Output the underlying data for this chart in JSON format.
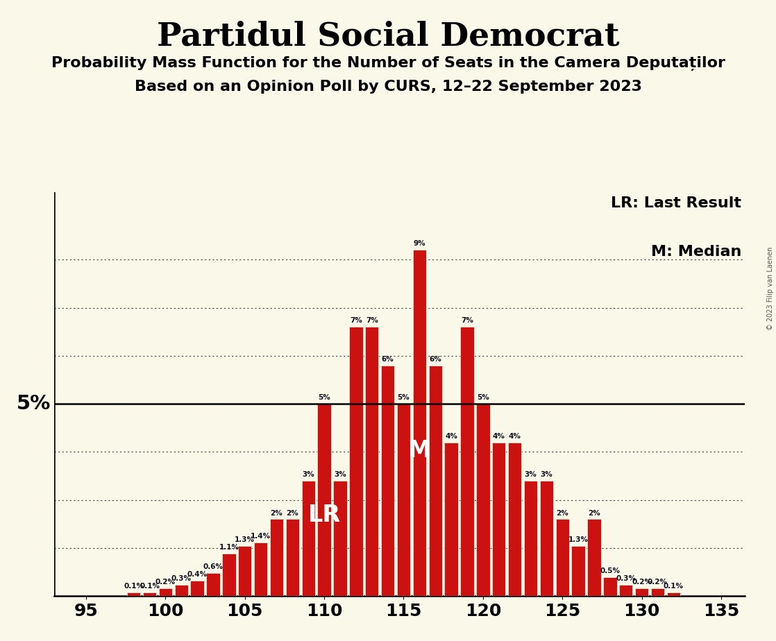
{
  "title": "Partidul Social Democrat",
  "subtitle1": "Probability Mass Function for the Number of Seats in the Camera Deputaților",
  "subtitle2": "Based on an Opinion Poll by CURS, 12–22 September 2023",
  "copyright": "© 2023 Filip van Laenen",
  "seats": [
    95,
    96,
    97,
    98,
    99,
    100,
    101,
    102,
    103,
    104,
    105,
    106,
    107,
    108,
    109,
    110,
    111,
    112,
    113,
    114,
    115,
    116,
    117,
    118,
    119,
    120,
    121,
    122,
    123,
    124,
    125,
    126,
    127,
    128,
    129,
    130,
    131,
    132,
    133,
    134,
    135
  ],
  "values": [
    0.0,
    0.0,
    0.0,
    0.1,
    0.1,
    0.2,
    0.3,
    0.4,
    0.6,
    1.1,
    1.3,
    1.4,
    2.0,
    2.0,
    3.0,
    5.0,
    3.0,
    7.0,
    7.0,
    6.0,
    5.0,
    9.0,
    6.0,
    4.0,
    7.0,
    5.0,
    4.0,
    4.0,
    3.0,
    3.0,
    2.0,
    1.3,
    2.0,
    0.5,
    0.3,
    0.2,
    0.2,
    0.1,
    0.0,
    0.0,
    0.0
  ],
  "labels": [
    "0%",
    "0%",
    "0%",
    "0.1%",
    "0.1%",
    "0.2%",
    "0.3%",
    "0.4%",
    "0.6%",
    "1.1%",
    "1.3%",
    "1.4%",
    "2%",
    "2%",
    "3%",
    "5%",
    "3%",
    "7%",
    "7%",
    "6%",
    "5%",
    "9%",
    "6%",
    "4%",
    "7%",
    "5%",
    "4%",
    "4%",
    "3%",
    "3%",
    "2%",
    "1.3%",
    "2%",
    "0.5%",
    "0.3%",
    "0.2%",
    "0.2%",
    "0.1%",
    "0%",
    "0%",
    "0%"
  ],
  "bar_color": "#cc1111",
  "background_color": "#faf8e8",
  "lr_seat": 110,
  "median_seat": 116,
  "y_line_5pct": 5.0,
  "xlim": [
    93.0,
    136.5
  ],
  "ylim": [
    0,
    10.5
  ],
  "xticks": [
    95,
    100,
    105,
    110,
    115,
    120,
    125,
    130,
    135
  ],
  "ytick_lines": [
    1.25,
    2.5,
    3.75,
    5.0,
    6.25,
    7.5,
    8.75
  ],
  "title_fontsize": 34,
  "subtitle_fontsize": 16,
  "label_fontsize": 7.5,
  "axis_fontsize": 18,
  "annotation_fontsize": 24,
  "legend_fontsize": 16
}
